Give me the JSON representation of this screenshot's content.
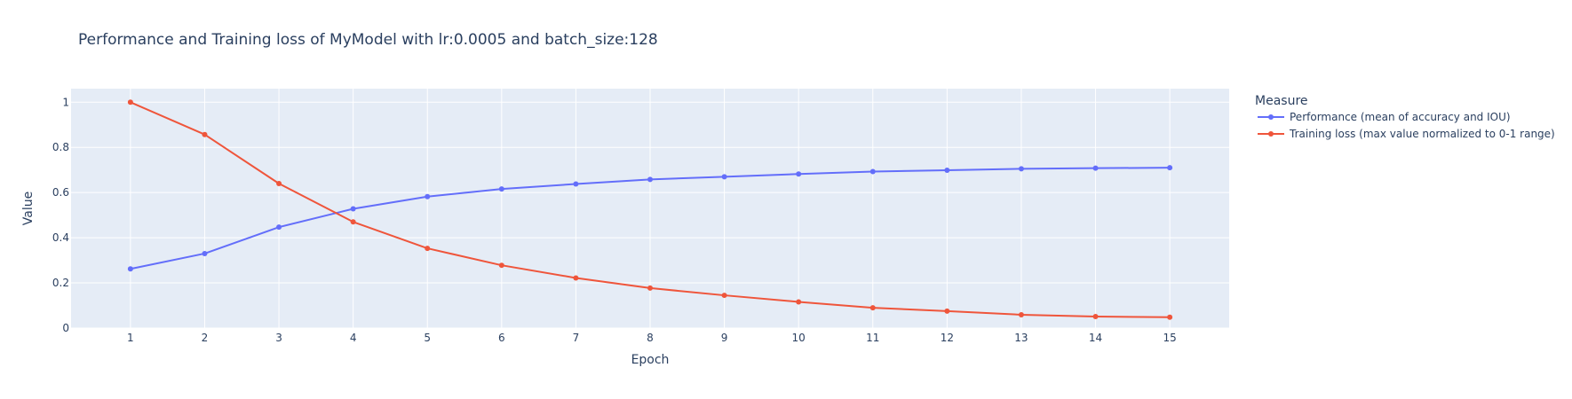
{
  "chart_data": {
    "type": "line",
    "title": "Performance and Training loss of MyModel with lr:0.0005 and batch_size:128",
    "xlabel": "Epoch",
    "ylabel": "Value",
    "x": [
      1,
      2,
      3,
      4,
      5,
      6,
      7,
      8,
      9,
      10,
      11,
      12,
      13,
      14,
      15
    ],
    "xlim": [
      0.2,
      15.8
    ],
    "ylim": [
      0,
      1.06
    ],
    "x_ticks": [
      1,
      2,
      3,
      4,
      5,
      6,
      7,
      8,
      9,
      10,
      11,
      12,
      13,
      14,
      15
    ],
    "y_ticks": [
      0,
      0.2,
      0.4,
      0.6,
      0.8,
      1
    ],
    "y_tick_labels": [
      "0",
      "0.2",
      "0.4",
      "0.6",
      "0.8",
      "1"
    ],
    "grid": true,
    "legend_title": "Measure",
    "legend_position": "right",
    "background_color": "#e5ecf6",
    "series": [
      {
        "name": "Performance (mean of accuracy and IOU)",
        "color": "#636efa",
        "values": [
          0.262,
          0.33,
          0.447,
          0.528,
          0.582,
          0.616,
          0.638,
          0.658,
          0.67,
          0.682,
          0.693,
          0.699,
          0.705,
          0.708,
          0.71
        ]
      },
      {
        "name": "Training loss (max value normalized to 0-1 range)",
        "color": "#ef553b",
        "values": [
          1.0,
          0.857,
          0.64,
          0.47,
          0.353,
          0.278,
          0.222,
          0.177,
          0.145,
          0.116,
          0.09,
          0.075,
          0.059,
          0.051,
          0.048
        ]
      }
    ]
  }
}
